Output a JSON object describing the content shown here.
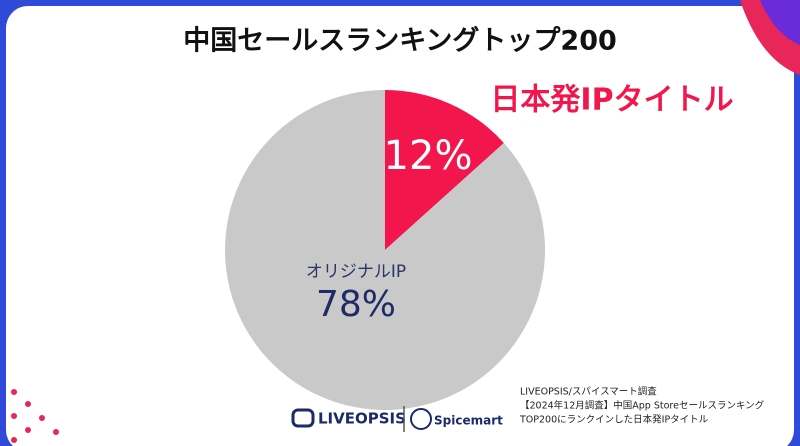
{
  "chart_data": {
    "type": "pie",
    "title": "中国セールスランキングトップ200",
    "categories": [
      "日本発IPタイトル",
      "オリジナルIP"
    ],
    "values": [
      12,
      78
    ],
    "value_labels": [
      "12%",
      "78%"
    ],
    "colors": [
      "#f2164c",
      "#c9c9c9"
    ],
    "source": [
      "LIVEOPSIS/スパイスマート調査",
      "【2024年12月調査】中国App Storeセールスランキング",
      "TOP200にランクインした日本発IPタイトル"
    ],
    "logos": [
      "LIVEOPSIS",
      "Spicemart"
    ]
  }
}
